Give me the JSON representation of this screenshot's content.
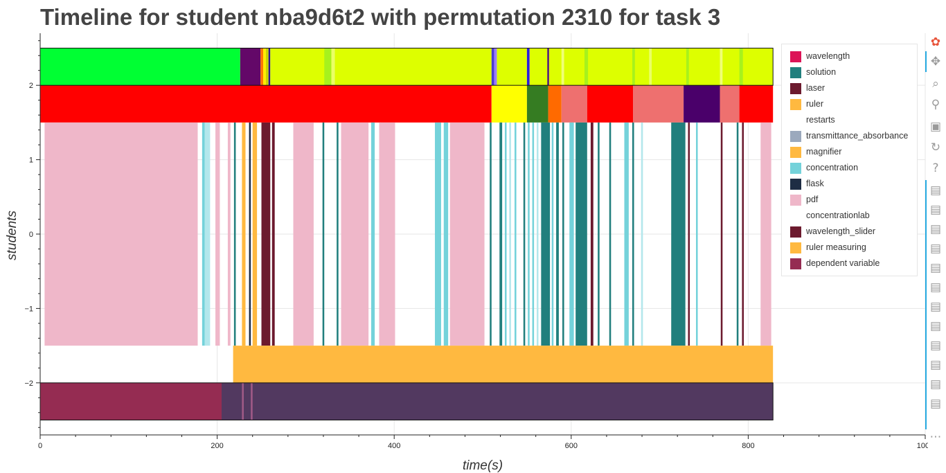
{
  "chart_data": {
    "type": "timeline",
    "title": "Timeline for student nba9d6t2 with permutation 2310 for task 3",
    "xlabel": "time(s)",
    "ylabel": "students",
    "xlim": [
      0,
      1000
    ],
    "ylim": [
      -2.7,
      2.7
    ],
    "x_ticks": [
      0,
      200,
      400,
      600,
      800,
      1000
    ],
    "y_ticks": [
      -2,
      -1,
      0,
      1,
      2
    ],
    "y_tick_labels": [
      "−2",
      "−1",
      "0",
      "1",
      "2"
    ],
    "grid": true,
    "legend_position": "top-right",
    "legend": [
      {
        "label": "wavelength",
        "color": "#dc1457"
      },
      {
        "label": "solution",
        "color": "#217f7d"
      },
      {
        "label": "laser",
        "color": "#6c1a2e"
      },
      {
        "label": "ruler",
        "color": "#ffb940"
      },
      {
        "label": "restarts",
        "color": "#ffffff"
      },
      {
        "label": "transmittance_absorbance",
        "color": "#9ba9bd"
      },
      {
        "label": "magnifier",
        "color": "#ffb940"
      },
      {
        "label": "concentration",
        "color": "#74d2da"
      },
      {
        "label": "flask",
        "color": "#1e2d44"
      },
      {
        "label": "pdf",
        "color": "#efb7c9"
      },
      {
        "label": "concentrationlab",
        "color": "#ffffff"
      },
      {
        "label": "wavelength_slider",
        "color": "#6c1a2e"
      },
      {
        "label": "ruler measuring",
        "color": "#ffb940"
      },
      {
        "label": "dependent variable",
        "color": "#952c52"
      }
    ],
    "rows": [
      {
        "y_range": [
          2,
          2.5
        ],
        "segments": [
          {
            "x0": 0,
            "x1": 226,
            "color": "#00ff33"
          },
          {
            "x0": 226,
            "x1": 249,
            "color": "#630868"
          },
          {
            "x0": 249,
            "x1": 252,
            "color": "#ff7700"
          },
          {
            "x0": 252,
            "x1": 255,
            "color": "#ffee00"
          },
          {
            "x0": 255,
            "x1": 258,
            "color": "#c8d400"
          },
          {
            "x0": 258,
            "x1": 260,
            "color": "#2b1496"
          },
          {
            "x0": 260,
            "x1": 510,
            "color": "#ddff00"
          },
          {
            "x0": 321,
            "x1": 329,
            "color": "#a7f21d"
          },
          {
            "x0": 329,
            "x1": 333,
            "color": "#eaff66"
          },
          {
            "x0": 510,
            "x1": 513,
            "color": "#4b3bd0"
          },
          {
            "x0": 513,
            "x1": 516,
            "color": "#9a7cff"
          },
          {
            "x0": 516,
            "x1": 550,
            "color": "#ddff00"
          },
          {
            "x0": 550,
            "x1": 553,
            "color": "#2a1ae0"
          },
          {
            "x0": 553,
            "x1": 573,
            "color": "#ddff00"
          },
          {
            "x0": 573,
            "x1": 575,
            "color": "#4a1070"
          },
          {
            "x0": 575,
            "x1": 828,
            "color": "#ddff00"
          },
          {
            "x0": 589,
            "x1": 592,
            "color": "#f0ff77"
          },
          {
            "x0": 615,
            "x1": 619,
            "color": "#a7f21d"
          },
          {
            "x0": 669,
            "x1": 672,
            "color": "#a7f21d"
          },
          {
            "x0": 688,
            "x1": 691,
            "color": "#eaff66"
          },
          {
            "x0": 730,
            "x1": 733,
            "color": "#a7f21d"
          },
          {
            "x0": 768,
            "x1": 771,
            "color": "#f0ff77"
          },
          {
            "x0": 790,
            "x1": 794,
            "color": "#a7f21d"
          }
        ]
      },
      {
        "y_range": [
          1.5,
          2
        ],
        "segments": [
          {
            "x0": 0,
            "x1": 510,
            "color": "#ff0000"
          },
          {
            "x0": 510,
            "x1": 550,
            "color": "#ffff00"
          },
          {
            "x0": 550,
            "x1": 574,
            "color": "#357c22"
          },
          {
            "x0": 574,
            "x1": 589,
            "color": "#ff6a00"
          },
          {
            "x0": 589,
            "x1": 618,
            "color": "#ee706f"
          },
          {
            "x0": 618,
            "x1": 670,
            "color": "#ff0000"
          },
          {
            "x0": 670,
            "x1": 727,
            "color": "#ee706f"
          },
          {
            "x0": 727,
            "x1": 768,
            "color": "#4a006a"
          },
          {
            "x0": 768,
            "x1": 790,
            "color": "#ee706f"
          },
          {
            "x0": 790,
            "x1": 828,
            "color": "#ff0000"
          }
        ]
      },
      {
        "y_range": [
          -1.5,
          1.5
        ],
        "segments": [
          {
            "x0": 5,
            "x1": 178,
            "color": "#efb7c9"
          },
          {
            "x0": 183,
            "x1": 186,
            "color": "#74d2da"
          },
          {
            "x0": 186,
            "x1": 192,
            "color": "#b3e7ec"
          },
          {
            "x0": 198,
            "x1": 203,
            "color": "#efb7c9"
          },
          {
            "x0": 212,
            "x1": 215,
            "color": "#efb7c9"
          },
          {
            "x0": 219,
            "x1": 221,
            "color": "#217f7d"
          },
          {
            "x0": 228,
            "x1": 232,
            "color": "#ffb940"
          },
          {
            "x0": 236,
            "x1": 238,
            "color": "#1e2d44"
          },
          {
            "x0": 240,
            "x1": 245,
            "color": "#ffb940"
          },
          {
            "x0": 250,
            "x1": 260,
            "color": "#6c1a2e"
          },
          {
            "x0": 262,
            "x1": 265,
            "color": "#6c1a2e"
          },
          {
            "x0": 286,
            "x1": 309,
            "color": "#efb7c9"
          },
          {
            "x0": 319,
            "x1": 321,
            "color": "#217f7d"
          },
          {
            "x0": 335,
            "x1": 337,
            "color": "#217f7d"
          },
          {
            "x0": 340,
            "x1": 371,
            "color": "#efb7c9"
          },
          {
            "x0": 374,
            "x1": 378,
            "color": "#74d2da"
          },
          {
            "x0": 383,
            "x1": 385,
            "color": "#efb7c9"
          },
          {
            "x0": 384,
            "x1": 401,
            "color": "#efb7c9"
          },
          {
            "x0": 446,
            "x1": 453,
            "color": "#74d2da"
          },
          {
            "x0": 456,
            "x1": 461,
            "color": "#74d2da"
          },
          {
            "x0": 463,
            "x1": 502,
            "color": "#efb7c9"
          },
          {
            "x0": 508,
            "x1": 510,
            "color": "#217f7d"
          },
          {
            "x0": 519,
            "x1": 522,
            "color": "#217f7d"
          },
          {
            "x0": 525,
            "x1": 527,
            "color": "#74d2da"
          },
          {
            "x0": 530,
            "x1": 532,
            "color": "#b3e7ec"
          },
          {
            "x0": 536,
            "x1": 538,
            "color": "#74d2da"
          },
          {
            "x0": 546,
            "x1": 548,
            "color": "#217f7d"
          },
          {
            "x0": 551,
            "x1": 553,
            "color": "#74d2da"
          },
          {
            "x0": 556,
            "x1": 558,
            "color": "#74d2da"
          },
          {
            "x0": 561,
            "x1": 563,
            "color": "#b3e7ec"
          },
          {
            "x0": 566,
            "x1": 576,
            "color": "#217f7d"
          },
          {
            "x0": 578,
            "x1": 580,
            "color": "#74d2da"
          },
          {
            "x0": 583,
            "x1": 586,
            "color": "#217f7d"
          },
          {
            "x0": 590,
            "x1": 592,
            "color": "#217f7d"
          },
          {
            "x0": 598,
            "x1": 603,
            "color": "#74d2da"
          },
          {
            "x0": 605,
            "x1": 618,
            "color": "#217f7d"
          },
          {
            "x0": 622,
            "x1": 625,
            "color": "#6c1a2e"
          },
          {
            "x0": 630,
            "x1": 632,
            "color": "#217f7d"
          },
          {
            "x0": 643,
            "x1": 645,
            "color": "#217f7d"
          },
          {
            "x0": 660,
            "x1": 665,
            "color": "#74d2da"
          },
          {
            "x0": 669,
            "x1": 671,
            "color": "#217f7d"
          },
          {
            "x0": 679,
            "x1": 681,
            "color": "#b3e7ec"
          },
          {
            "x0": 713,
            "x1": 729,
            "color": "#217f7d"
          },
          {
            "x0": 732,
            "x1": 734,
            "color": "#6c1a2e"
          },
          {
            "x0": 741,
            "x1": 743,
            "color": "#74d2da"
          },
          {
            "x0": 769,
            "x1": 771,
            "color": "#6c1a2e"
          },
          {
            "x0": 787,
            "x1": 789,
            "color": "#217f7d"
          },
          {
            "x0": 793,
            "x1": 795,
            "color": "#6c1a2e"
          },
          {
            "x0": 814,
            "x1": 826,
            "color": "#efb7c9"
          }
        ]
      },
      {
        "y_range": [
          -2,
          -1.5
        ],
        "segments": [
          {
            "x0": 218,
            "x1": 828,
            "color": "#ffb940"
          }
        ]
      },
      {
        "y_range": [
          -2.5,
          -2
        ],
        "segments": [
          {
            "x0": 0,
            "x1": 205,
            "color": "#952c52"
          },
          {
            "x0": 205,
            "x1": 828,
            "color": "#523960"
          },
          {
            "x0": 228,
            "x1": 230,
            "color": "#a05a87"
          },
          {
            "x0": 238,
            "x1": 240,
            "color": "#a05a87"
          }
        ]
      }
    ],
    "outlined_rows": [
      [
        2,
        2.5
      ],
      [
        -2.5,
        -2
      ]
    ]
  },
  "toolbar": {
    "items": [
      {
        "name": "bokeh-logo-icon",
        "glyph": "✿",
        "color": "#e8543a"
      },
      {
        "name": "pan-tool-icon",
        "glyph": "✥",
        "color": "#9a9a9a"
      },
      {
        "name": "box-zoom-tool-icon",
        "glyph": "⌕",
        "color": "#9a9a9a"
      },
      {
        "name": "wheel-zoom-tool-icon",
        "glyph": "⚲",
        "color": "#9a9a9a"
      },
      {
        "name": "save-tool-icon",
        "glyph": "▣",
        "color": "#9a9a9a"
      },
      {
        "name": "reset-tool-icon",
        "glyph": "↻",
        "color": "#9a9a9a"
      },
      {
        "name": "help-tool-icon",
        "glyph": "?",
        "color": "#9a9a9a"
      },
      {
        "name": "hover-tool-icon",
        "glyph": "▤",
        "color": "#9a9a9a"
      },
      {
        "name": "hover-tool-icon",
        "glyph": "▤",
        "color": "#9a9a9a"
      },
      {
        "name": "hover-tool-icon",
        "glyph": "▤",
        "color": "#9a9a9a"
      },
      {
        "name": "hover-tool-icon",
        "glyph": "▤",
        "color": "#9a9a9a"
      },
      {
        "name": "hover-tool-icon",
        "glyph": "▤",
        "color": "#9a9a9a"
      },
      {
        "name": "hover-tool-icon",
        "glyph": "▤",
        "color": "#9a9a9a"
      },
      {
        "name": "hover-tool-icon",
        "glyph": "▤",
        "color": "#9a9a9a"
      },
      {
        "name": "hover-tool-icon",
        "glyph": "▤",
        "color": "#9a9a9a"
      },
      {
        "name": "hover-tool-icon",
        "glyph": "▤",
        "color": "#9a9a9a"
      },
      {
        "name": "hover-tool-icon",
        "glyph": "▤",
        "color": "#9a9a9a"
      },
      {
        "name": "hover-tool-icon",
        "glyph": "▤",
        "color": "#9a9a9a"
      },
      {
        "name": "hover-tool-icon",
        "glyph": "▤",
        "color": "#9a9a9a"
      },
      {
        "name": "more-tools-icon",
        "glyph": "⋯",
        "color": "#9a9a9a"
      }
    ]
  }
}
